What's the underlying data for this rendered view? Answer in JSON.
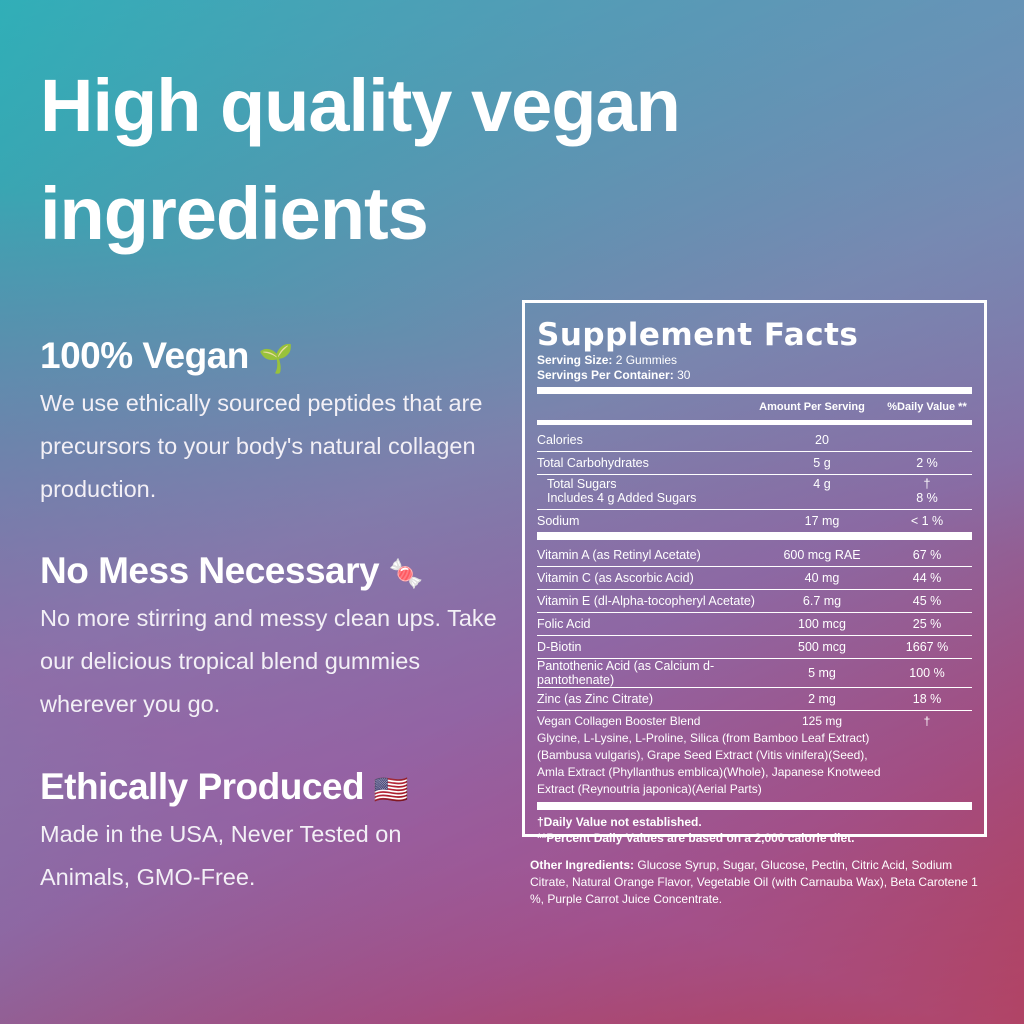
{
  "headline": [
    "High quality vegan",
    "ingredients"
  ],
  "sections": [
    {
      "title": "100% Vegan",
      "icon": "seedling-icon",
      "emoji": "🌱",
      "body": "We use ethically sourced peptides that are precursors to your body's natural collagen production."
    },
    {
      "title": "No Mess Necessary",
      "icon": "candy-icon",
      "emoji": "🍬",
      "body": "No more stirring and messy clean ups. Take our delicious tropical blend gummies wherever you go."
    },
    {
      "title": "Ethically Produced",
      "icon": "us-flag-icon",
      "emoji": "🇺🇸",
      "body": "Made in the USA, Never Tested on Animals, GMO-Free."
    }
  ],
  "facts": {
    "title": "Supplement Facts",
    "serving_size_label": "Serving Size:",
    "serving_size": "2 Gummies",
    "servings_label": "Servings Per Container:",
    "servings": "30",
    "col_amount": "Amount Per Serving",
    "col_dv": "%Daily Value **",
    "rows": [
      {
        "name": "Calories",
        "amount": "20",
        "dv": ""
      },
      {
        "name": "Total Carbohydrates",
        "amount": "5 g",
        "dv": "2 %"
      },
      {
        "name": "Total Sugars",
        "amount": "4 g",
        "dv": "†",
        "sub": "Includes 4 g Added Sugars",
        "sub_dv": "8 %"
      },
      {
        "name": "Sodium",
        "amount": "17 mg",
        "dv": "< 1 %"
      }
    ],
    "vitamins": [
      {
        "name": "Vitamin A (as Retinyl Acetate)",
        "amount": "600 mcg RAE",
        "dv": "67 %"
      },
      {
        "name": "Vitamin C (as Ascorbic Acid)",
        "amount": "40 mg",
        "dv": "44 %"
      },
      {
        "name": "Vitamin E (dl-Alpha-tocopheryl Acetate)",
        "amount": "6.7 mg",
        "dv": "45 %"
      },
      {
        "name": "Folic Acid",
        "amount": "100 mcg",
        "dv": "25 %"
      },
      {
        "name": "D-Biotin",
        "amount": "500 mcg",
        "dv": "1667 %"
      },
      {
        "name": "Pantothenic Acid (as Calcium d-pantothenate)",
        "amount": "5 mg",
        "dv": "100 %"
      },
      {
        "name": "Zinc (as Zinc Citrate)",
        "amount": "2 mg",
        "dv": "18 %"
      }
    ],
    "blend_name": "Vegan Collagen Booster Blend",
    "blend_amount": "125 mg",
    "blend_dv": "†",
    "blend_desc": "Glycine, L-Lysine, L-Proline, Silica (from Bamboo Leaf Extract)(Bambusa vulgaris), Grape Seed Extract (Vitis vinifera)(Seed), Amla Extract (Phyllanthus emblica)(Whole), Japanese Knotweed Extract (Reynoutria japonica)(Aerial Parts)",
    "foot1": "†Daily Value not established.",
    "foot2": "**Percent Daily Values are based on a 2,000 calorie diet."
  },
  "other_label": "Other Ingredients:",
  "other_text": "Glucose Syrup, Sugar, Glucose, Pectin, Citric Acid, Sodium Citrate, Natural Orange Flavor, Vegetable Oil (with Carnauba Wax), Beta Carotene 1 %, Purple Carrot Juice Concentrate."
}
